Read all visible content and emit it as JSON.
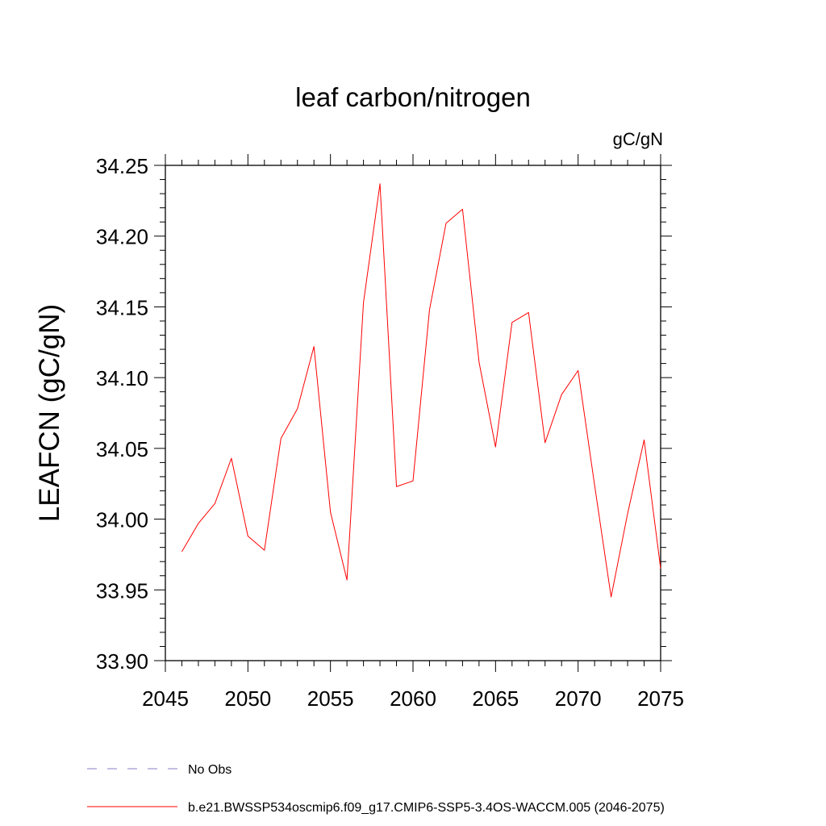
{
  "chart_data": {
    "type": "line",
    "title": "leaf carbon/nitrogen",
    "units": "gC/gN",
    "ylabel": "LEAFCN  (gC/gN)",
    "xlabel": "",
    "xlim": [
      2045,
      2075
    ],
    "ylim": [
      33.9,
      34.25
    ],
    "xticks": [
      2045,
      2050,
      2055,
      2060,
      2065,
      2070,
      2075
    ],
    "xtick_labels": [
      "2045",
      "2050",
      "2055",
      "2060",
      "2065",
      "2070",
      "2075"
    ],
    "yticks": [
      33.9,
      33.95,
      34.0,
      34.05,
      34.1,
      34.15,
      34.2,
      34.25
    ],
    "ytick_labels": [
      "33.90",
      "33.95",
      "34.00",
      "34.05",
      "34.10",
      "34.15",
      "34.20",
      "34.25"
    ],
    "grid": false,
    "legend_position": "bottom",
    "series": [
      {
        "name": "b.e21.BWSSP534oscmip6.f09_g17.CMIP6-SSP5-3.4OS-WACCM.005 (2046-2075)",
        "color": "#ff0000",
        "style": "solid",
        "x": [
          2046,
          2047,
          2048,
          2049,
          2050,
          2051,
          2052,
          2053,
          2054,
          2055,
          2056,
          2057,
          2058,
          2059,
          2060,
          2061,
          2062,
          2063,
          2064,
          2065,
          2066,
          2067,
          2068,
          2069,
          2070,
          2071,
          2072,
          2073,
          2074,
          2075
        ],
        "values": [
          33.977,
          33.997,
          34.011,
          34.043,
          33.988,
          33.978,
          34.057,
          34.078,
          34.122,
          34.005,
          33.957,
          34.153,
          34.237,
          34.023,
          34.027,
          34.148,
          34.209,
          34.219,
          34.111,
          34.051,
          34.139,
          34.146,
          34.054,
          34.088,
          34.105,
          34.024,
          33.945,
          34.004,
          34.056,
          33.965
        ]
      }
    ],
    "legend": [
      {
        "label": "No Obs",
        "color": "#8a7fc8",
        "style": "dashed"
      },
      {
        "label": "b.e21.BWSSP534oscmip6.f09_g17.CMIP6-SSP5-3.4OS-WACCM.005 (2046-2075)",
        "color": "#ff0000",
        "style": "solid"
      }
    ]
  }
}
